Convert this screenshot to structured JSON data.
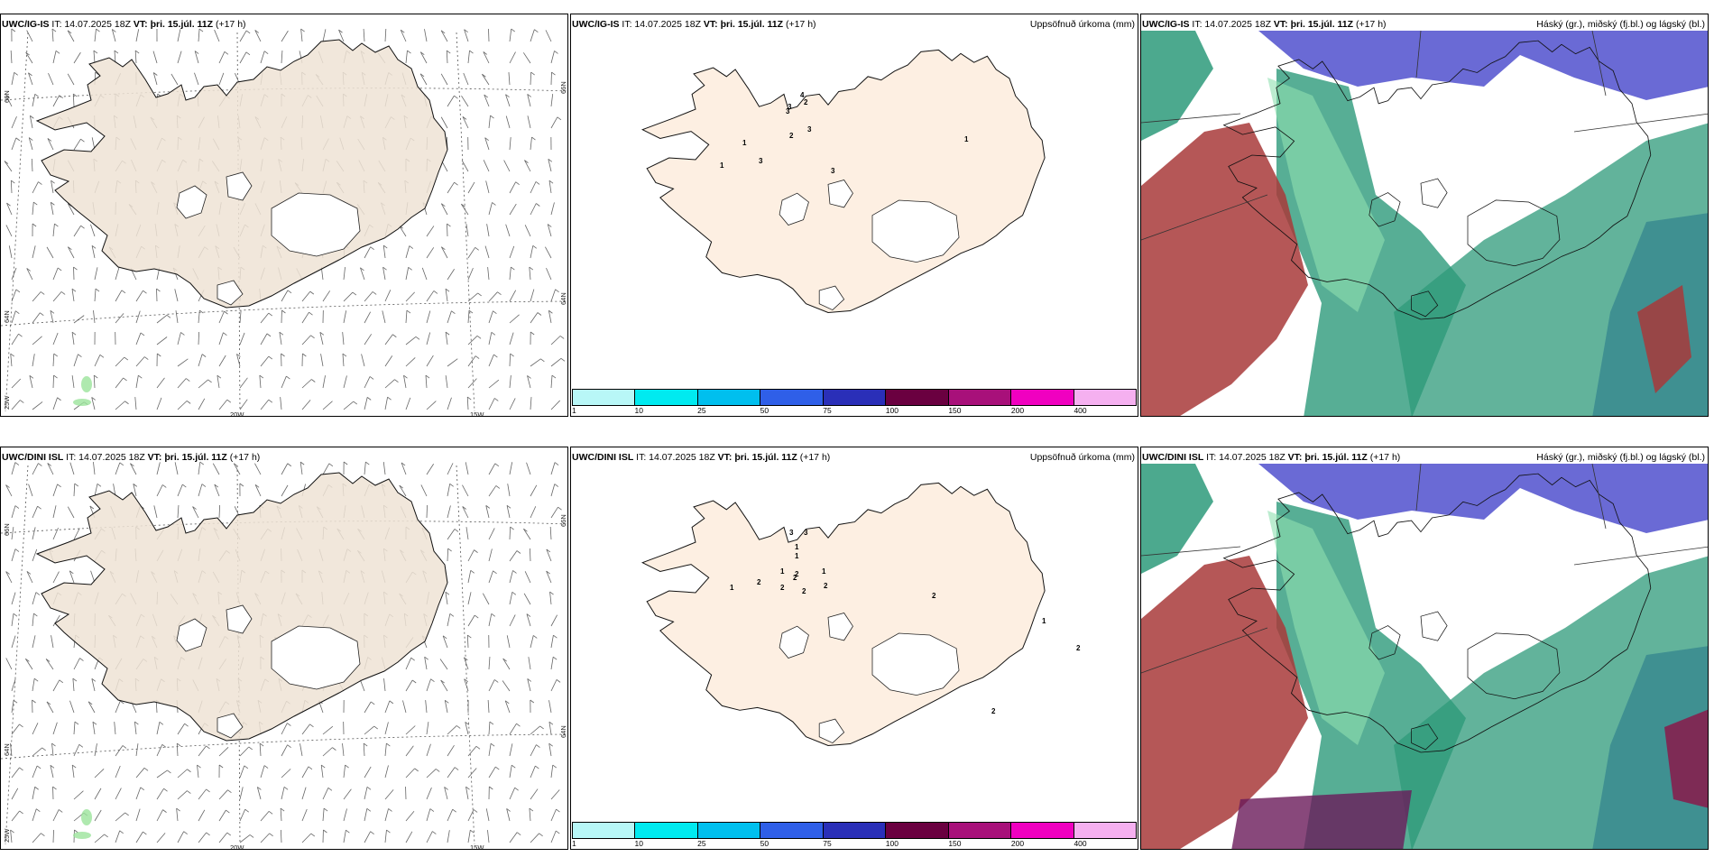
{
  "panels": [
    {
      "model": "UWC/IG-IS",
      "it": "IT: 14.07.2025 18Z",
      "vt_label": "VT:",
      "vt_value": "þri. 15.júl. 11Z",
      "lead": "(+17 h)",
      "title": ""
    },
    {
      "model": "UWC/IG-IS",
      "it": "IT: 14.07.2025 18Z",
      "vt_label": "VT:",
      "vt_value": "þri. 15.júl. 11Z",
      "lead": "(+17 h)",
      "title": "Uppsöfnuð úrkoma (mm)"
    },
    {
      "model": "UWC/IG-IS",
      "it": "IT: 14.07.2025 18Z",
      "vt_label": "VT:",
      "vt_value": "þri. 15.júl. 11Z",
      "lead": "(+17 h)",
      "title": "Háský (gr.), miðský (fj.bl.) og lágský (bl.)"
    },
    {
      "model": "UWC/DINI ISL",
      "it": "IT: 14.07.2025 18Z",
      "vt_label": "VT:",
      "vt_value": "þri. 15.júl. 11Z",
      "lead": "(+17 h)",
      "title": ""
    },
    {
      "model": "UWC/DINI ISL",
      "it": "IT: 14.07.2025 18Z",
      "vt_label": "VT:",
      "vt_value": "þri. 15.júl. 11Z",
      "lead": "(+17 h)",
      "title": "Uppsöfnuð úrkoma (mm)"
    },
    {
      "model": "UWC/DINI ISL",
      "it": "IT: 14.07.2025 18Z",
      "vt_label": "VT:",
      "vt_value": "þri. 15.júl. 11Z",
      "lead": "(+17 h)",
      "title": "Háský (gr.), miðský (fj.bl.) og lágský (bl.)"
    }
  ],
  "grid_labels": {
    "lat66": "66N",
    "lat64": "64N",
    "lon25": "25W",
    "lon20": "20W",
    "lon15": "15W"
  },
  "legend": {
    "ticks": [
      "1",
      "10",
      "25",
      "50",
      "75",
      "100",
      "150",
      "200",
      "400"
    ],
    "colors": [
      "#b8f7f7",
      "#00eaf0",
      "#00bfee",
      "#2f5fe8",
      "#2a2fb8",
      "#6a0040",
      "#a8107a",
      "#f000c0",
      "#f5b0f0"
    ]
  },
  "precip_labels": {
    "top": [
      "1",
      "1",
      "3",
      "3",
      "3",
      "2",
      "4",
      "2",
      "3",
      "3",
      "1"
    ],
    "bottom": [
      "3",
      "3",
      "1",
      "1",
      "1",
      "2",
      "2",
      "2",
      "1",
      "2",
      "1",
      "2",
      "2",
      "2",
      "1",
      "2",
      "2"
    ]
  },
  "colors": {
    "land_wind": "#efe3d5",
    "land_precip": "#fdefe2",
    "high_cloud": "#5a5ad0",
    "mid_cloud": "#2d9a7a",
    "low_cloud": "#a83a3a",
    "mid_light": "#8fe0b0"
  }
}
